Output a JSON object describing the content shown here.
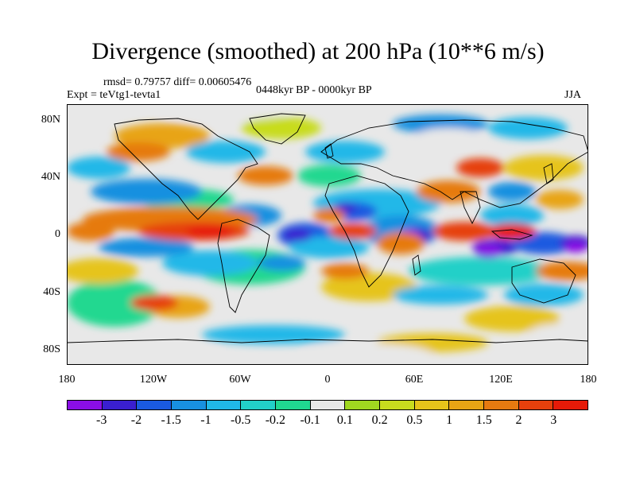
{
  "title": "Divergence (smoothed) at 200 hPa (10**6 m/s)",
  "stats": "rmsd= 0.79757 diff= 0.00605476",
  "experiment": "Expt = teVtg1-tevta1",
  "period": "0448kyr BP - 0000kyr BP",
  "season": "JJA",
  "lat_labels": [
    "80N",
    "40N",
    "0",
    "40S",
    "80S"
  ],
  "lon_labels": [
    "180",
    "120W",
    "60W",
    "0",
    "60E",
    "120E",
    "180"
  ],
  "colorbar": {
    "colors": [
      "#8a0ee6",
      "#3a1fd0",
      "#1a5ae0",
      "#1890e0",
      "#20b8e8",
      "#22d0c8",
      "#20d890",
      "#e8e8e8",
      "#a0d820",
      "#c8dc1e",
      "#e6c41a",
      "#e8a414",
      "#e67a10",
      "#e6400c",
      "#e61a08"
    ],
    "labels": [
      "-3",
      "-2",
      "-1.5",
      "-1",
      "-0.5",
      "-0.2",
      "-0.1",
      "0.1",
      "0.2",
      "0.5",
      "1",
      "1.5",
      "2",
      "3"
    ]
  },
  "icons": [
    "world-map-coastlines"
  ]
}
